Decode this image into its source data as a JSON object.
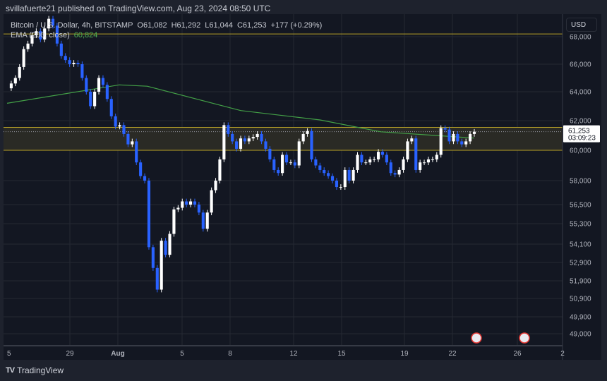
{
  "header": {
    "published": "svillafuerte21 published on TradingView.com, Aug 23, 2024 08:50 UTC"
  },
  "legend": {
    "symbol": "Bitcoin / U.S. Dollar, 4h, BITSTAMP",
    "open": "O61,082",
    "high": "H61,292",
    "low": "L61,044",
    "close": "C61,253",
    "change": "+177 (+0.29%)",
    "ema_label": "EMA (200, close)",
    "ema_value": "60,824"
  },
  "price_axis": {
    "currency": "USD",
    "current_price": "61,253",
    "countdown": "03:09:23"
  },
  "footer": {
    "brand": "TradingView"
  },
  "colors": {
    "up": "#ffffff",
    "down": "#2962ff",
    "ema": "#43a047",
    "zone_line": "#b8a227",
    "background": "#131722"
  },
  "chart_data": {
    "type": "candlestick",
    "interval": "4h",
    "y_ticks": [
      68000,
      66000,
      64000,
      62000,
      60000,
      58000,
      56500,
      55300,
      54100,
      52900,
      51900,
      50900,
      49900,
      49000
    ],
    "x_ticks": [
      "5",
      "29",
      "Aug",
      "5",
      "8",
      "12",
      "15",
      "19",
      "22",
      "26",
      "2"
    ],
    "closes": [
      64250,
      64600,
      65000,
      65800,
      67100,
      67500,
      68100,
      68400,
      67800,
      68600,
      69300,
      68800,
      67500,
      66600,
      66300,
      66000,
      66100,
      66000,
      65000,
      64000,
      63000,
      64000,
      65000,
      64500,
      63500,
      62300,
      61600,
      61700,
      61100,
      60400,
      60600,
      59200,
      58300,
      58000,
      53900,
      52600,
      51400,
      54300,
      53400,
      54700,
      56200,
      56300,
      56700,
      56500,
      56700,
      56500,
      56000,
      55000,
      56000,
      57400,
      58000,
      59400,
      61700,
      61100,
      60600,
      60100,
      60800,
      60600,
      60800,
      60900,
      61100,
      60600,
      60100,
      59400,
      58700,
      58500,
      59700,
      59200,
      59200,
      59000,
      60600,
      61100,
      61300,
      59400,
      59000,
      58700,
      58500,
      58300,
      58000,
      57600,
      57600,
      58700,
      58000,
      58700,
      59700,
      59200,
      59200,
      59400,
      59400,
      59900,
      59700,
      59200,
      58500,
      58400,
      58700,
      59400,
      60600,
      60800,
      58700,
      59200,
      59200,
      59400,
      59400,
      59700,
      61500,
      61400,
      60600,
      61100,
      60600,
      60400,
      60600,
      61100,
      61253
    ],
    "ema200": [
      [
        0,
        63200
      ],
      [
        0.24,
        64500
      ],
      [
        0.3,
        64400
      ],
      [
        0.5,
        62700
      ],
      [
        0.67,
        62050
      ],
      [
        0.8,
        61250
      ],
      [
        1,
        60824
      ]
    ],
    "resistance_zone": [
      60000,
      61550
    ],
    "upper_line": 68200,
    "current_price": 61253
  }
}
